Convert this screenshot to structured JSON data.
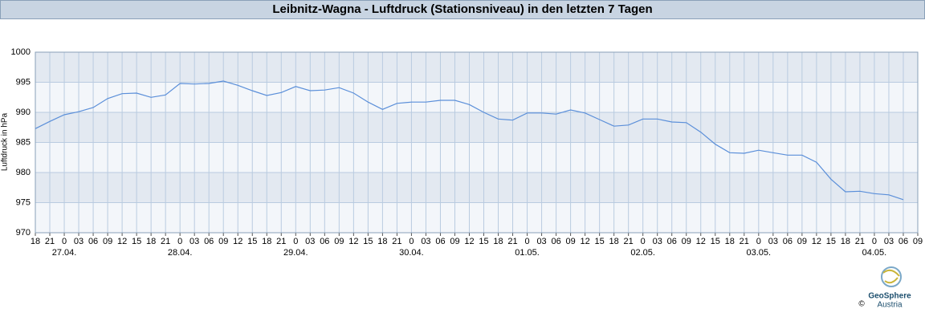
{
  "chart_data": {
    "type": "line",
    "title": "Leibnitz-Wagna - Luftdruck (Stationsniveau) in den letzten 7 Tagen",
    "y_label": "Luftdruck in hPa",
    "xlim": [
      0,
      183
    ],
    "xticks": [
      {
        "value": 0,
        "label": "18"
      },
      {
        "value": 3,
        "label": "21"
      },
      {
        "value": 6,
        "label": "0"
      },
      {
        "value": 9,
        "label": "03"
      },
      {
        "value": 12,
        "label": "06"
      },
      {
        "value": 15,
        "label": "09"
      },
      {
        "value": 18,
        "label": "12"
      },
      {
        "value": 21,
        "label": "15"
      },
      {
        "value": 24,
        "label": "18"
      },
      {
        "value": 27,
        "label": "21"
      },
      {
        "value": 30,
        "label": "0"
      },
      {
        "value": 33,
        "label": "03"
      },
      {
        "value": 36,
        "label": "06"
      },
      {
        "value": 39,
        "label": "09"
      },
      {
        "value": 42,
        "label": "12"
      },
      {
        "value": 45,
        "label": "15"
      },
      {
        "value": 48,
        "label": "18"
      },
      {
        "value": 51,
        "label": "21"
      },
      {
        "value": 54,
        "label": "0"
      },
      {
        "value": 57,
        "label": "03"
      },
      {
        "value": 60,
        "label": "06"
      },
      {
        "value": 63,
        "label": "09"
      },
      {
        "value": 66,
        "label": "12"
      },
      {
        "value": 69,
        "label": "15"
      },
      {
        "value": 72,
        "label": "18"
      },
      {
        "value": 75,
        "label": "21"
      },
      {
        "value": 78,
        "label": "0"
      },
      {
        "value": 81,
        "label": "03"
      },
      {
        "value": 84,
        "label": "06"
      },
      {
        "value": 87,
        "label": "09"
      },
      {
        "value": 90,
        "label": "12"
      },
      {
        "value": 93,
        "label": "15"
      },
      {
        "value": 96,
        "label": "18"
      },
      {
        "value": 99,
        "label": "21"
      },
      {
        "value": 102,
        "label": "0"
      },
      {
        "value": 105,
        "label": "03"
      },
      {
        "value": 108,
        "label": "06"
      },
      {
        "value": 111,
        "label": "09"
      },
      {
        "value": 114,
        "label": "12"
      },
      {
        "value": 117,
        "label": "15"
      },
      {
        "value": 120,
        "label": "18"
      },
      {
        "value": 123,
        "label": "21"
      },
      {
        "value": 126,
        "label": "0"
      },
      {
        "value": 129,
        "label": "03"
      },
      {
        "value": 132,
        "label": "06"
      },
      {
        "value": 135,
        "label": "09"
      },
      {
        "value": 138,
        "label": "12"
      },
      {
        "value": 141,
        "label": "15"
      },
      {
        "value": 144,
        "label": "18"
      },
      {
        "value": 147,
        "label": "21"
      },
      {
        "value": 150,
        "label": "0"
      },
      {
        "value": 153,
        "label": "03"
      },
      {
        "value": 156,
        "label": "06"
      },
      {
        "value": 159,
        "label": "09"
      },
      {
        "value": 162,
        "label": "12"
      },
      {
        "value": 165,
        "label": "15"
      },
      {
        "value": 168,
        "label": "18"
      },
      {
        "value": 171,
        "label": "21"
      },
      {
        "value": 174,
        "label": "0"
      },
      {
        "value": 177,
        "label": "03"
      },
      {
        "value": 180,
        "label": "06"
      },
      {
        "value": 183,
        "label": "09"
      }
    ],
    "day_ticks": [
      {
        "value": 6,
        "label": "27.04."
      },
      {
        "value": 30,
        "label": "28.04."
      },
      {
        "value": 54,
        "label": "29.04."
      },
      {
        "value": 78,
        "label": "30.04."
      },
      {
        "value": 102,
        "label": "01.05."
      },
      {
        "value": 126,
        "label": "02.05."
      },
      {
        "value": 150,
        "label": "03.05."
      },
      {
        "value": 174,
        "label": "04.05."
      }
    ],
    "ylim": [
      970,
      1000
    ],
    "yticks": [
      970,
      975,
      980,
      985,
      990,
      995,
      1000
    ],
    "grid": true,
    "color": "#5b8fd9",
    "x": [
      0,
      3,
      6,
      9,
      12,
      15,
      18,
      21,
      24,
      27,
      30,
      33,
      36,
      39,
      42,
      45,
      48,
      51,
      54,
      57,
      60,
      63,
      66,
      69,
      72,
      75,
      78,
      81,
      84,
      87,
      90,
      93,
      96,
      99,
      102,
      105,
      108,
      111,
      114,
      117,
      120,
      123,
      126,
      129,
      132,
      135,
      138,
      141,
      144,
      147,
      150,
      153,
      156,
      159,
      162,
      165,
      168,
      171,
      174,
      177,
      180
    ],
    "values": [
      987.3,
      988.5,
      989.6,
      990.1,
      990.8,
      992.3,
      993.1,
      993.2,
      992.5,
      992.9,
      994.8,
      994.7,
      994.8,
      995.2,
      994.5,
      993.6,
      992.8,
      993.3,
      994.3,
      993.6,
      993.7,
      994.1,
      993.2,
      991.7,
      990.5,
      991.5,
      991.7,
      991.7,
      992.0,
      992.0,
      991.3,
      990.0,
      988.9,
      988.7,
      989.9,
      989.9,
      989.7,
      990.4,
      989.9,
      988.8,
      987.7,
      987.9,
      988.9,
      988.9,
      988.4,
      988.3,
      986.7,
      984.7,
      983.3,
      983.2,
      983.7,
      983.3,
      982.9,
      982.9,
      981.7,
      978.9,
      976.8,
      976.9,
      976.5,
      976.3,
      975.5
    ],
    "logo": {
      "name": "GeoSphere",
      "sub": "Austria",
      "copyright": "©"
    }
  }
}
